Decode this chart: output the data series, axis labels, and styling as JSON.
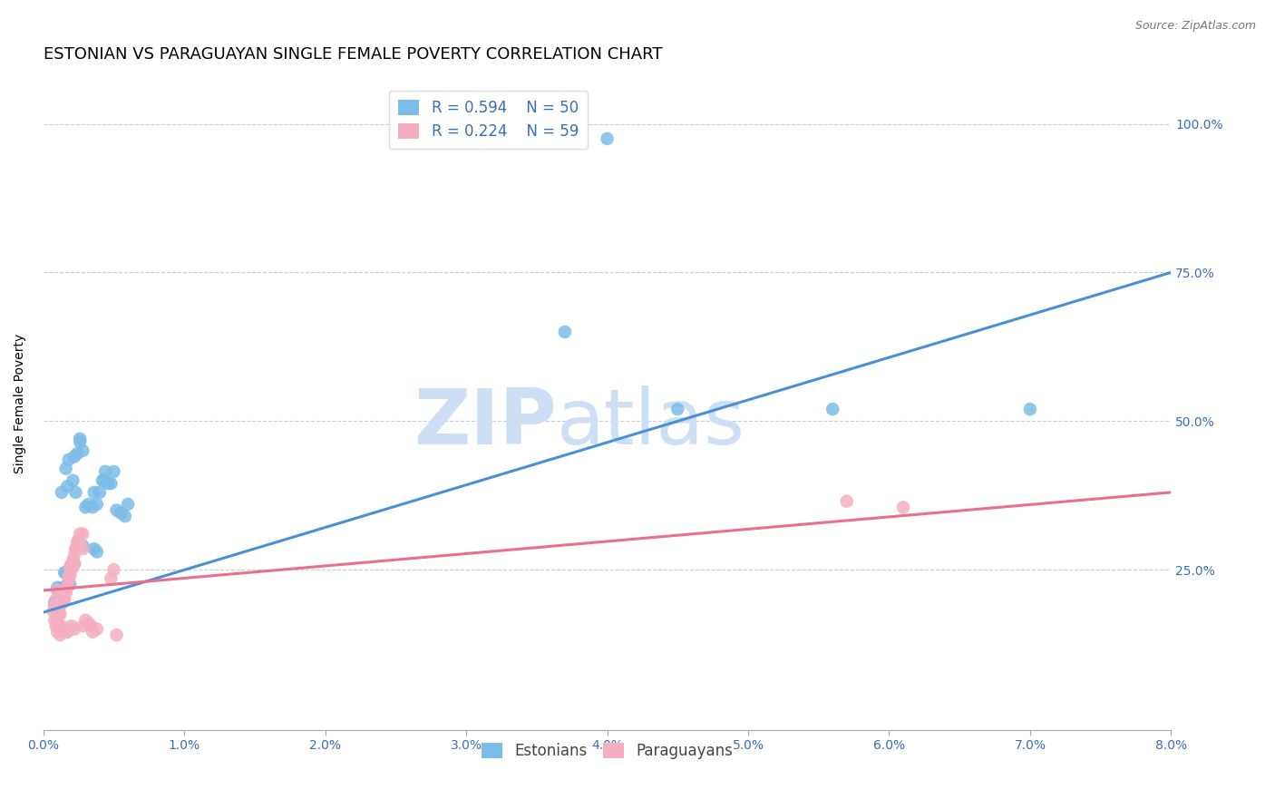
{
  "title": "ESTONIAN VS PARAGUAYAN SINGLE FEMALE POVERTY CORRELATION CHART",
  "source": "Source: ZipAtlas.com",
  "ylabel": "Single Female Poverty",
  "legend_blue_R": "R = 0.594",
  "legend_blue_N": "N = 50",
  "legend_pink_R": "R = 0.224",
  "legend_pink_N": "N = 59",
  "legend_blue_label": "Estonians",
  "legend_pink_label": "Paraguayans",
  "blue_color": "#7bbce8",
  "pink_color": "#f5afc0",
  "blue_line_color": "#4a90d4",
  "pink_line_color": "#e8708a",
  "text_color": "#3a6eb5",
  "watermark_zip": "ZIP",
  "watermark_atlas": "atlas",
  "watermark_color": "#ccdff5",
  "background_color": "#ffffff",
  "xlim": [
    0.0,
    0.08
  ],
  "ylim": [
    -0.02,
    1.08
  ],
  "blue_line_x": [
    0.0,
    0.08
  ],
  "blue_line_y": [
    0.178,
    0.75
  ],
  "pink_line_x": [
    0.0,
    0.08
  ],
  "pink_line_y": [
    0.215,
    0.38
  ],
  "blue_scatter": [
    [
      0.0008,
      0.195
    ],
    [
      0.0009,
      0.195
    ],
    [
      0.001,
      0.215
    ],
    [
      0.0011,
      0.215
    ],
    [
      0.0012,
      0.2
    ],
    [
      0.0013,
      0.2
    ],
    [
      0.0014,
      0.22
    ],
    [
      0.001,
      0.22
    ],
    [
      0.0015,
      0.245
    ],
    [
      0.0016,
      0.245
    ],
    [
      0.002,
      0.255
    ],
    [
      0.0018,
      0.23
    ],
    [
      0.0022,
      0.26
    ],
    [
      0.0019,
      0.225
    ],
    [
      0.0025,
      0.3
    ],
    [
      0.0028,
      0.29
    ],
    [
      0.0023,
      0.38
    ],
    [
      0.003,
      0.355
    ],
    [
      0.0032,
      0.36
    ],
    [
      0.0021,
      0.4
    ],
    [
      0.0035,
      0.355
    ],
    [
      0.004,
      0.38
    ],
    [
      0.0038,
      0.36
    ],
    [
      0.0036,
      0.38
    ],
    [
      0.0042,
      0.4
    ],
    [
      0.0043,
      0.4
    ],
    [
      0.0044,
      0.415
    ],
    [
      0.0046,
      0.395
    ],
    [
      0.005,
      0.415
    ],
    [
      0.0048,
      0.395
    ],
    [
      0.0052,
      0.35
    ],
    [
      0.0055,
      0.345
    ],
    [
      0.006,
      0.36
    ],
    [
      0.0058,
      0.34
    ],
    [
      0.0013,
      0.38
    ],
    [
      0.0017,
      0.39
    ],
    [
      0.0016,
      0.42
    ],
    [
      0.0018,
      0.435
    ],
    [
      0.0022,
      0.44
    ],
    [
      0.0024,
      0.445
    ],
    [
      0.0026,
      0.465
    ],
    [
      0.0026,
      0.47
    ],
    [
      0.0028,
      0.45
    ],
    [
      0.0036,
      0.285
    ],
    [
      0.0038,
      0.28
    ],
    [
      0.04,
      0.975
    ],
    [
      0.056,
      0.52
    ],
    [
      0.07,
      0.52
    ],
    [
      0.045,
      0.52
    ],
    [
      0.037,
      0.65
    ]
  ],
  "pink_scatter": [
    [
      0.0007,
      0.18
    ],
    [
      0.0008,
      0.19
    ],
    [
      0.0009,
      0.2
    ],
    [
      0.001,
      0.215
    ],
    [
      0.0008,
      0.165
    ],
    [
      0.0009,
      0.155
    ],
    [
      0.001,
      0.165
    ],
    [
      0.0011,
      0.175
    ],
    [
      0.0012,
      0.175
    ],
    [
      0.001,
      0.175
    ],
    [
      0.0011,
      0.185
    ],
    [
      0.0012,
      0.19
    ],
    [
      0.0013,
      0.205
    ],
    [
      0.0014,
      0.195
    ],
    [
      0.0015,
      0.21
    ],
    [
      0.0013,
      0.21
    ],
    [
      0.0014,
      0.205
    ],
    [
      0.0016,
      0.215
    ],
    [
      0.0015,
      0.2
    ],
    [
      0.0016,
      0.21
    ],
    [
      0.0017,
      0.22
    ],
    [
      0.0018,
      0.23
    ],
    [
      0.0019,
      0.24
    ],
    [
      0.0018,
      0.24
    ],
    [
      0.002,
      0.25
    ],
    [
      0.0019,
      0.255
    ],
    [
      0.002,
      0.26
    ],
    [
      0.0022,
      0.275
    ],
    [
      0.0021,
      0.255
    ],
    [
      0.0022,
      0.26
    ],
    [
      0.0021,
      0.265
    ],
    [
      0.0023,
      0.285
    ],
    [
      0.0024,
      0.295
    ],
    [
      0.0025,
      0.3
    ],
    [
      0.0025,
      0.295
    ],
    [
      0.0023,
      0.285
    ],
    [
      0.0026,
      0.31
    ],
    [
      0.0028,
      0.31
    ],
    [
      0.0026,
      0.29
    ],
    [
      0.0028,
      0.285
    ],
    [
      0.001,
      0.145
    ],
    [
      0.0012,
      0.14
    ],
    [
      0.0013,
      0.155
    ],
    [
      0.0015,
      0.15
    ],
    [
      0.0016,
      0.145
    ],
    [
      0.0017,
      0.145
    ],
    [
      0.002,
      0.155
    ],
    [
      0.0022,
      0.15
    ],
    [
      0.003,
      0.165
    ],
    [
      0.0028,
      0.155
    ],
    [
      0.0032,
      0.16
    ],
    [
      0.0034,
      0.155
    ],
    [
      0.0035,
      0.145
    ],
    [
      0.0038,
      0.15
    ],
    [
      0.0048,
      0.235
    ],
    [
      0.005,
      0.25
    ],
    [
      0.0052,
      0.14
    ],
    [
      0.057,
      0.365
    ],
    [
      0.061,
      0.355
    ]
  ],
  "title_fontsize": 13,
  "source_fontsize": 9,
  "label_fontsize": 10,
  "tick_fontsize": 10,
  "legend_fontsize": 12
}
